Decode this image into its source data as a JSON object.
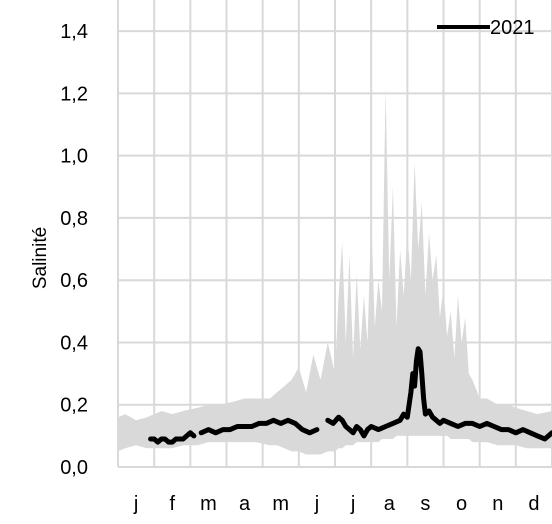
{
  "chart_data": {
    "type": "line",
    "title": "",
    "xlabel": "",
    "ylabel": "Salinité",
    "ylim": [
      0,
      1.5
    ],
    "y_ticks": [
      "0,0",
      "0,2",
      "0,4",
      "0,6",
      "0,8",
      "1,0",
      "1,2",
      "1,4"
    ],
    "categories": [
      "j",
      "f",
      "m",
      "a",
      "m",
      "j",
      "j",
      "a",
      "s",
      "o",
      "n",
      "d"
    ],
    "grid": true,
    "legend_position": "top-right",
    "colors": {
      "series": "#000000",
      "range_band": "#d9d9d9",
      "grid": "#d9d9d9"
    },
    "range_band": {
      "x": [
        0.0,
        0.2,
        0.5,
        0.8,
        1.2,
        1.5,
        1.8,
        2.2,
        2.5,
        2.8,
        3.2,
        3.5,
        3.8,
        4.2,
        4.4,
        4.6,
        4.8,
        5.0,
        5.2,
        5.4,
        5.6,
        5.8,
        6.0,
        6.1,
        6.2,
        6.3,
        6.4,
        6.5,
        6.6,
        6.7,
        6.8,
        6.9,
        7.0,
        7.1,
        7.2,
        7.3,
        7.4,
        7.5,
        7.6,
        7.7,
        7.8,
        7.9,
        8.0,
        8.1,
        8.2,
        8.3,
        8.4,
        8.5,
        8.6,
        8.7,
        8.8,
        8.9,
        9.0,
        9.1,
        9.2,
        9.3,
        9.4,
        9.5,
        9.6,
        9.7,
        9.8,
        9.9,
        10.0,
        10.2,
        10.5,
        10.8,
        11.0,
        11.3,
        11.6,
        12.0
      ],
      "low": [
        0.05,
        0.06,
        0.07,
        0.06,
        0.06,
        0.06,
        0.07,
        0.07,
        0.08,
        0.08,
        0.08,
        0.08,
        0.08,
        0.07,
        0.07,
        0.06,
        0.05,
        0.05,
        0.04,
        0.04,
        0.04,
        0.05,
        0.05,
        0.06,
        0.06,
        0.07,
        0.07,
        0.07,
        0.08,
        0.08,
        0.08,
        0.08,
        0.08,
        0.08,
        0.08,
        0.09,
        0.09,
        0.09,
        0.09,
        0.1,
        0.1,
        0.1,
        0.1,
        0.1,
        0.1,
        0.1,
        0.1,
        0.1,
        0.1,
        0.1,
        0.1,
        0.1,
        0.1,
        0.1,
        0.09,
        0.09,
        0.09,
        0.09,
        0.09,
        0.09,
        0.08,
        0.08,
        0.08,
        0.08,
        0.07,
        0.07,
        0.07,
        0.06,
        0.06,
        0.06
      ],
      "high": [
        0.16,
        0.17,
        0.15,
        0.16,
        0.18,
        0.17,
        0.18,
        0.19,
        0.2,
        0.2,
        0.21,
        0.22,
        0.22,
        0.22,
        0.24,
        0.26,
        0.28,
        0.32,
        0.24,
        0.36,
        0.28,
        0.4,
        0.3,
        0.55,
        0.72,
        0.4,
        0.68,
        0.35,
        0.62,
        0.38,
        0.55,
        0.4,
        0.8,
        0.45,
        0.6,
        0.5,
        1.22,
        0.6,
        0.9,
        0.45,
        0.7,
        0.55,
        0.75,
        0.6,
        0.98,
        0.7,
        0.85,
        0.55,
        0.75,
        0.6,
        0.68,
        0.48,
        0.58,
        0.42,
        0.5,
        0.35,
        0.55,
        0.4,
        0.48,
        0.3,
        0.28,
        0.25,
        0.22,
        0.22,
        0.2,
        0.2,
        0.19,
        0.18,
        0.17,
        0.18
      ]
    },
    "series": [
      {
        "name": "2021",
        "segments": [
          {
            "x": [
              0.9,
              1.0,
              1.1,
              1.2,
              1.3,
              1.4,
              1.5,
              1.6,
              1.7,
              1.8,
              1.9,
              2.0,
              2.1
            ],
            "y": [
              0.09,
              0.09,
              0.08,
              0.09,
              0.09,
              0.08,
              0.08,
              0.09,
              0.09,
              0.09,
              0.1,
              0.11,
              0.1
            ]
          },
          {
            "x": [
              2.3,
              2.5,
              2.7,
              2.9,
              3.1,
              3.3,
              3.5,
              3.7,
              3.9,
              4.1,
              4.3,
              4.5,
              4.7,
              4.9,
              5.1,
              5.3,
              5.5
            ],
            "y": [
              0.11,
              0.12,
              0.11,
              0.12,
              0.12,
              0.13,
              0.13,
              0.13,
              0.14,
              0.14,
              0.15,
              0.14,
              0.15,
              0.14,
              0.12,
              0.11,
              0.12
            ]
          },
          {
            "x": [
              5.8,
              5.95,
              6.1,
              6.2,
              6.3,
              6.4,
              6.5,
              6.6,
              6.7,
              6.8,
              6.9,
              7.0,
              7.2,
              7.4,
              7.6,
              7.8,
              7.9,
              8.0,
              8.05,
              8.1,
              8.15,
              8.2,
              8.25,
              8.3,
              8.35,
              8.4,
              8.45,
              8.5,
              8.6,
              8.7,
              8.8,
              8.9,
              9.0,
              9.2,
              9.4,
              9.6,
              9.8,
              10.0,
              10.2,
              10.4,
              10.6,
              10.8,
              11.0,
              11.2,
              11.4,
              11.6,
              11.8,
              12.0
            ],
            "y": [
              0.15,
              0.14,
              0.16,
              0.15,
              0.13,
              0.12,
              0.11,
              0.13,
              0.12,
              0.1,
              0.12,
              0.13,
              0.12,
              0.13,
              0.14,
              0.15,
              0.17,
              0.16,
              0.2,
              0.24,
              0.3,
              0.26,
              0.34,
              0.38,
              0.37,
              0.3,
              0.22,
              0.17,
              0.18,
              0.16,
              0.15,
              0.14,
              0.15,
              0.14,
              0.13,
              0.14,
              0.14,
              0.13,
              0.14,
              0.13,
              0.12,
              0.12,
              0.11,
              0.12,
              0.11,
              0.1,
              0.09,
              0.11
            ]
          }
        ]
      }
    ]
  }
}
